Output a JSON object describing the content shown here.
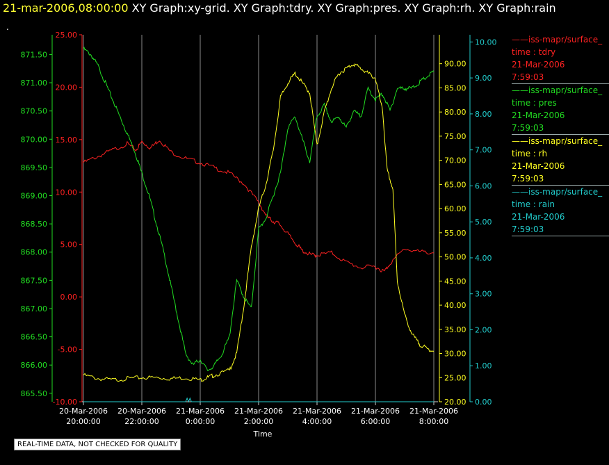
{
  "header": {
    "date": "21-mar-2006,08:00:00",
    "title": "XY Graph:xy-grid.  XY Graph:tdry.  XY Graph:pres.  XY Graph:rh.  XY Graph:rain"
  },
  "marker": ".",
  "footer_note": "REAL-TIME DATA, NOT CHECKED FOR QUALITY",
  "colors": {
    "tdry": "#ff2222",
    "pres": "#22dd22",
    "rh": "#ffff22",
    "rain": "#22cccc",
    "grid": "#8a8a8a"
  },
  "legend": [
    {
      "name": "iss-mapr/surface_",
      "var": "time : tdry",
      "date": "21-Mar-2006",
      "time": "7:59:03",
      "color": "#ff2222"
    },
    {
      "name": "iss-mapr/surface_",
      "var": "time : pres",
      "date": "21-Mar-2006",
      "time": "7:59:03",
      "color": "#22dd22"
    },
    {
      "name": "iss-mapr/surface_",
      "var": "time : rh",
      "date": "21-Mar-2006",
      "time": "7:59:03",
      "color": "#ffff22"
    },
    {
      "name": "iss-mapr/surface_",
      "var": "time : rain",
      "date": "21-Mar-2006",
      "time": "7:59:03",
      "color": "#22cccc"
    }
  ],
  "chart_data": {
    "type": "line",
    "xlabel": "Time",
    "x_ticks": [
      [
        "20-Mar-2006",
        "20:00:00"
      ],
      [
        "20-Mar-2006",
        "22:00:00"
      ],
      [
        "21-Mar-2006",
        "0:00:00"
      ],
      [
        "21-Mar-2006",
        "2:00:00"
      ],
      [
        "21-Mar-2006",
        "4:00:00"
      ],
      [
        "21-Mar-2006",
        "6:00:00"
      ],
      [
        "21-Mar-2006",
        "8:00:00"
      ]
    ],
    "xlim": [
      "2006-03-20 20:00",
      "2006-03-21 08:00"
    ],
    "axes": {
      "pres": {
        "ylim": [
          865.35,
          871.85
        ],
        "ticks": [
          "865.50",
          "866.00",
          "866.50",
          "867.00",
          "867.50",
          "868.00",
          "868.50",
          "869.00",
          "869.50",
          "870.00",
          "870.50",
          "871.00",
          "871.50"
        ],
        "tick_values": [
          865.5,
          866,
          866.5,
          867,
          867.5,
          868,
          868.5,
          869,
          869.5,
          870,
          870.5,
          871,
          871.5
        ]
      },
      "tdry": {
        "ylim": [
          -10,
          25
        ],
        "ticks": [
          "-10.00",
          "-5.00",
          "0.00",
          "5.00",
          "10.00",
          "15.00",
          "20.00",
          "25.00"
        ],
        "tick_values": [
          -10,
          -5,
          0,
          5,
          10,
          15,
          20,
          25
        ]
      },
      "rh": {
        "ylim": [
          20,
          96
        ],
        "ticks": [
          "20.00",
          "25.00",
          "30.00",
          "35.00",
          "40.00",
          "45.00",
          "50.00",
          "55.00",
          "60.00",
          "65.00",
          "70.00",
          "75.00",
          "80.00",
          "85.00",
          "90.00"
        ],
        "tick_values": [
          20,
          25,
          30,
          35,
          40,
          45,
          50,
          55,
          60,
          65,
          70,
          75,
          80,
          85,
          90
        ]
      },
      "rain": {
        "ylim": [
          0,
          10.2
        ],
        "ticks": [
          "0.00",
          "1.00",
          "2.00",
          "3.00",
          "4.00",
          "5.00",
          "6.00",
          "7.00",
          "8.00",
          "9.00",
          "10.00"
        ],
        "tick_values": [
          0,
          1,
          2,
          3,
          4,
          5,
          6,
          7,
          8,
          9,
          10
        ]
      }
    },
    "series": [
      {
        "name": "tdry",
        "axis": "tdry",
        "color": "#ff2222",
        "x": [
          0,
          0.5,
          1,
          1.5,
          1.8,
          2.0,
          2.3,
          2.6,
          3.0,
          3.5,
          4.0,
          4.5,
          5.0,
          5.5,
          6.0,
          6.3,
          6.5,
          6.7,
          7.0,
          7.3,
          7.5,
          7.8,
          8.0,
          8.5,
          9.0,
          9.5,
          10.0,
          10.3,
          10.5,
          11.0,
          11.5,
          12.0
        ],
        "values": [
          12.8,
          13.4,
          14.0,
          14.6,
          14.0,
          14.8,
          14.2,
          15.0,
          13.8,
          13.2,
          12.8,
          12.3,
          11.8,
          10.8,
          9.0,
          7.6,
          7.2,
          7.0,
          6.0,
          5.0,
          4.4,
          4.0,
          4.0,
          4.2,
          3.3,
          2.8,
          2.9,
          2.4,
          3.2,
          4.6,
          4.3,
          4.2
        ]
      },
      {
        "name": "pres",
        "axis": "pres",
        "color": "#22dd22",
        "x": [
          0,
          0.25,
          0.5,
          0.75,
          1.0,
          1.25,
          1.5,
          1.75,
          2.0,
          2.25,
          2.5,
          2.75,
          3.0,
          3.25,
          3.5,
          3.75,
          4.0,
          4.25,
          4.5,
          4.75,
          5.0,
          5.25,
          5.5,
          5.75,
          6.0,
          6.25,
          6.5,
          6.75,
          7.0,
          7.25,
          7.5,
          7.75,
          8.0,
          8.25,
          8.5,
          8.75,
          9.0,
          9.25,
          9.5,
          9.75,
          10.0,
          10.25,
          10.5,
          10.75,
          11.0,
          11.25,
          11.5,
          11.75,
          12.0
        ],
        "values": [
          871.6,
          871.5,
          871.3,
          871.0,
          870.7,
          870.4,
          870.1,
          869.8,
          869.4,
          869.0,
          868.5,
          868.0,
          867.4,
          866.8,
          866.2,
          866.0,
          866.1,
          865.9,
          866.0,
          866.2,
          866.5,
          867.5,
          867.2,
          867.0,
          868.4,
          868.6,
          869.0,
          869.4,
          870.2,
          870.4,
          870.0,
          869.6,
          870.4,
          870.6,
          870.3,
          870.4,
          870.2,
          870.5,
          870.4,
          870.9,
          870.7,
          870.8,
          870.5,
          870.9,
          870.9,
          870.9,
          871.0,
          871.1,
          871.2
        ]
      },
      {
        "name": "rh",
        "axis": "rh",
        "color": "#ffff22",
        "x": [
          0,
          0.5,
          1.0,
          1.5,
          2.0,
          2.5,
          3.0,
          3.5,
          4.0,
          4.25,
          4.5,
          5.0,
          5.25,
          5.5,
          5.75,
          6.0,
          6.25,
          6.5,
          6.75,
          7.0,
          7.25,
          7.5,
          7.75,
          8.0,
          8.25,
          8.5,
          8.75,
          9.0,
          9.25,
          9.5,
          9.75,
          10.0,
          10.25,
          10.4,
          10.6,
          10.75,
          11.0,
          11.25,
          11.5,
          11.75,
          12.0
        ],
        "values": [
          25.5,
          24.8,
          24.5,
          24.8,
          25.0,
          25.0,
          24.8,
          25.0,
          24.5,
          25.0,
          25.5,
          26.5,
          30.0,
          40.0,
          52.0,
          60.0,
          65.0,
          72.0,
          83.0,
          86.0,
          88.0,
          86.0,
          84.0,
          73.0,
          80.0,
          85.0,
          88.0,
          89.0,
          90.0,
          89.0,
          88.0,
          87.0,
          80.0,
          68.0,
          64.0,
          45.0,
          38.0,
          34.0,
          32.0,
          31.0,
          30.5
        ]
      },
      {
        "name": "rain",
        "axis": "rain",
        "color": "#22cccc",
        "x": [
          0,
          3.5,
          3.55,
          3.6,
          3.65,
          3.7,
          12.0
        ],
        "values": [
          0,
          0,
          0.1,
          0,
          0.1,
          0,
          0
        ]
      }
    ]
  }
}
